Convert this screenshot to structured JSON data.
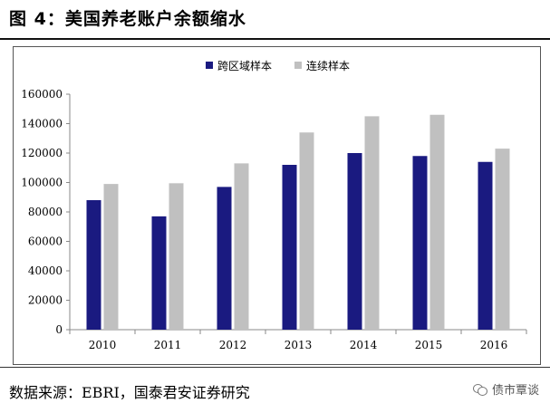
{
  "header": {
    "title": "图 4：美国养老账户余额缩水"
  },
  "footer": {
    "source": "数据来源：EBRI，国泰君安证券研究",
    "watermark": "债市覃谈",
    "watermark_icon": "wechat-icon"
  },
  "colors": {
    "series_1": "#1a1a80",
    "series_2": "#c0c0c0"
  },
  "chart_data": {
    "type": "bar",
    "title": "",
    "xlabel": "",
    "ylabel": "",
    "categories": [
      "2010",
      "2011",
      "2012",
      "2013",
      "2014",
      "2015",
      "2016"
    ],
    "series": [
      {
        "name": "跨区域样本",
        "values": [
          88000,
          77000,
          97000,
          112000,
          120000,
          118000,
          114000
        ]
      },
      {
        "name": "连续样本",
        "values": [
          99000,
          99500,
          113000,
          134000,
          145000,
          146000,
          123000
        ]
      }
    ],
    "ylim": [
      0,
      160000
    ],
    "yticks": [
      "0",
      "20000",
      "40000",
      "60000",
      "80000",
      "100000",
      "120000",
      "140000",
      "160000"
    ],
    "grid": false,
    "legend_position": "top-right"
  }
}
